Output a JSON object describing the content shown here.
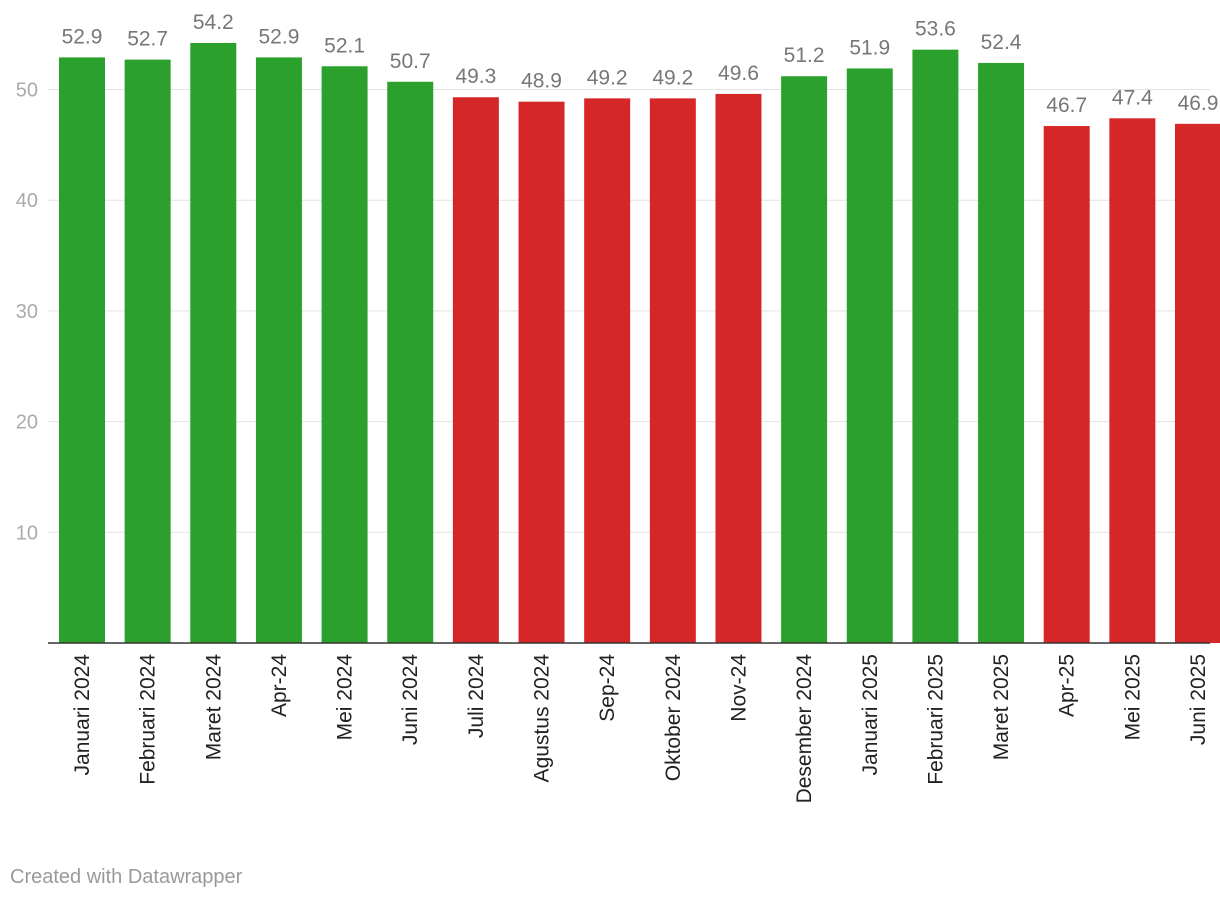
{
  "chart_data": {
    "type": "bar",
    "categories": [
      "Januari 2024",
      "Februari 2024",
      "Maret 2024",
      "Apr-24",
      "Mei 2024",
      "Juni 2024",
      "Juli 2024",
      "Agustus 2024",
      "Sep-24",
      "Oktober 2024",
      "Nov-24",
      "Desember 2024",
      "Januari 2025",
      "Februari 2025",
      "Maret 2025",
      "Apr-25",
      "Mei 2025",
      "Juni 2025"
    ],
    "values": [
      52.9,
      52.7,
      54.2,
      52.9,
      52.1,
      50.7,
      49.3,
      48.9,
      49.2,
      49.2,
      49.6,
      51.2,
      51.9,
      53.6,
      52.4,
      46.7,
      47.4,
      46.9
    ],
    "value_labels": [
      "52.9",
      "52.7",
      "54.2",
      "52.9",
      "52.1",
      "50.7",
      "49.3",
      "48.9",
      "49.2",
      "49.2",
      "49.6",
      "51.2",
      "51.9",
      "53.6",
      "52.4",
      "46.7",
      "47.4",
      "46.9"
    ],
    "threshold": 50,
    "colors": {
      "above_threshold": "#2ca02c",
      "below_threshold": "#d62728"
    },
    "yticks": [
      10,
      20,
      30,
      40,
      50
    ],
    "ylim": [
      0,
      54.2
    ],
    "grid": true,
    "title": "",
    "xlabel": "",
    "ylabel": ""
  },
  "footer": {
    "credit": "Created with Datawrapper"
  }
}
